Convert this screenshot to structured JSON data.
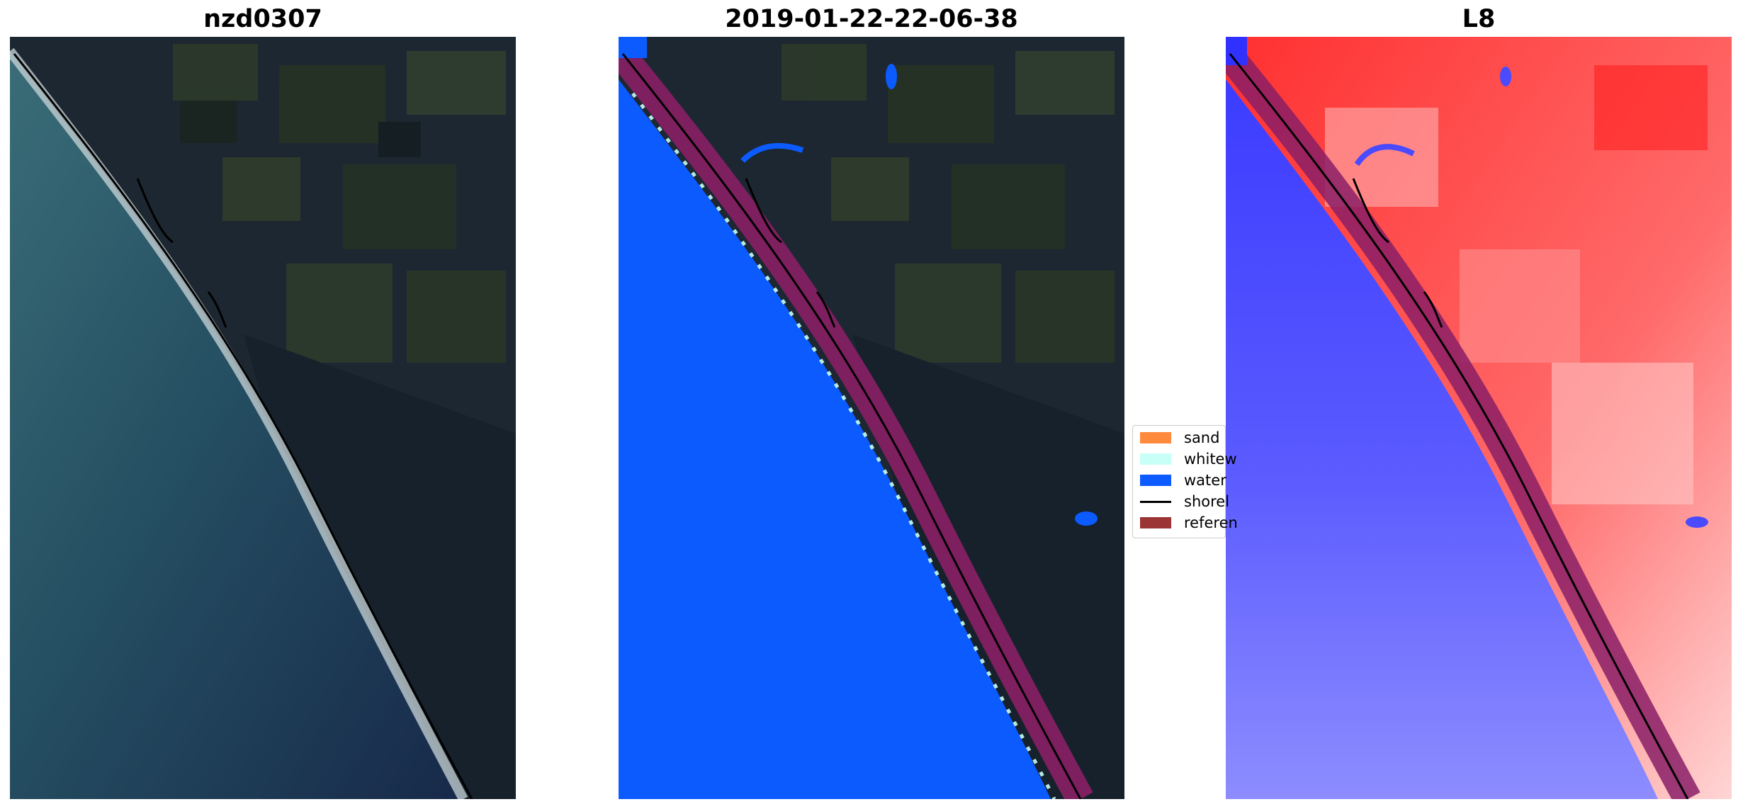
{
  "panels": [
    {
      "title": "nzd0307"
    },
    {
      "title": "2019-01-22-22-06-38"
    },
    {
      "title": "L8"
    }
  ],
  "legend": {
    "items": [
      {
        "label": "sand",
        "color": "#ff8a3d",
        "kind": "patch"
      },
      {
        "label": "whitew",
        "color": "#c8fff7",
        "kind": "patch"
      },
      {
        "label": "water",
        "color": "#0b5bff",
        "kind": "patch"
      },
      {
        "label": "shorel",
        "color": "#000000",
        "kind": "line"
      },
      {
        "label": "referen",
        "color": "#9b3434",
        "kind": "patch"
      }
    ]
  },
  "colors": {
    "ocean_rgb": "#244b5c",
    "land_rgb": "#1b2630",
    "water_class": "#0b5bff",
    "reference_band": "#8a1f66",
    "mndwi_land": "#ff2b2b",
    "mndwi_water": "#4a4aff"
  }
}
